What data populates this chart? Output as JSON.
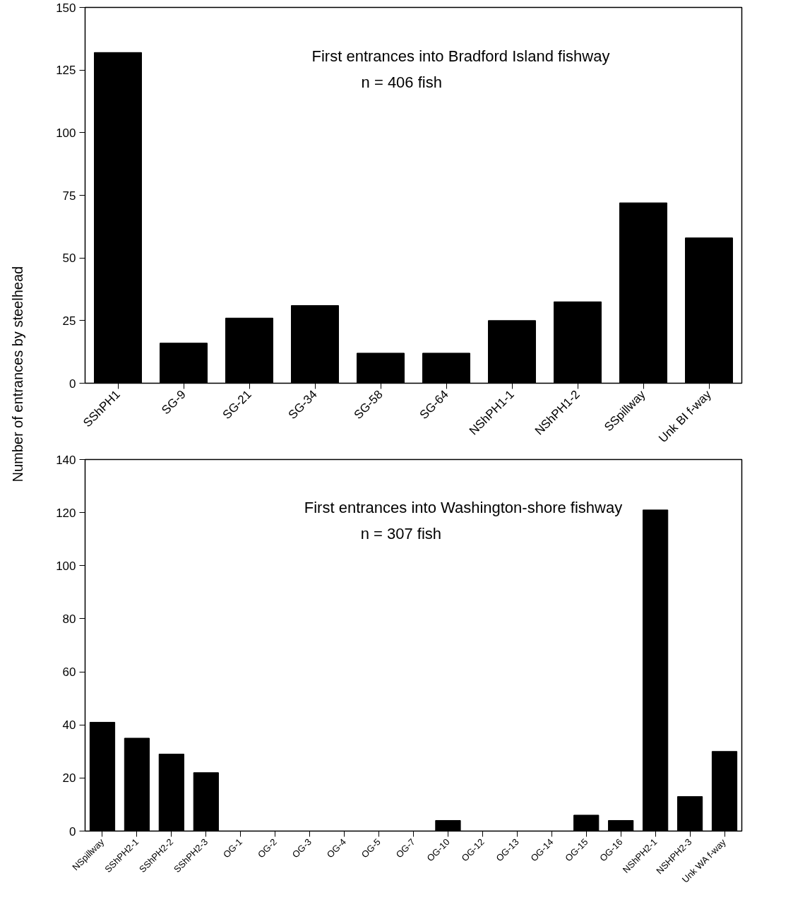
{
  "chart_data": [
    {
      "type": "bar",
      "title": "First entrances into Bradford Island fishway",
      "ylabel": "Number of entrances by steelhead",
      "annotations": [
        "n = 406 fish"
      ],
      "categories": [
        "SShPH1",
        "SG-9",
        "SG-21",
        "SG-34",
        "SG-58",
        "SG-64",
        "NShPH1-1",
        "NShPH1-2",
        "SSpillway",
        "Unk BI f-way"
      ],
      "values": [
        132,
        16,
        26,
        31,
        12,
        12,
        25,
        32.5,
        72,
        58
      ],
      "color": "#000000",
      "ylim": [
        0,
        150
      ],
      "yticks": [
        0,
        25,
        50,
        75,
        100,
        125,
        150
      ],
      "grid": false
    },
    {
      "type": "bar",
      "title": "First entrances into Washington-shore fishway",
      "annotations": [
        "n = 307 fish"
      ],
      "categories": [
        "NSpillway",
        "SShPH2-1",
        "SShPH2-2",
        "SShPH2-3",
        "OG-1",
        "OG-2",
        "OG-3",
        "OG-4",
        "OG-5",
        "OG-7",
        "OG-10",
        "OG-12",
        "OG-13",
        "OG-14",
        "OG-15",
        "OG-16",
        "NShPH2-1",
        "NSHPH2-3",
        "Unk WA f-way"
      ],
      "values": [
        41,
        35,
        29,
        22,
        0,
        0,
        0,
        0,
        0,
        0,
        4,
        0,
        0,
        0,
        6,
        4,
        121,
        13,
        30
      ],
      "color": "#000000",
      "ylim": [
        0,
        140
      ],
      "yticks": [
        0,
        20,
        40,
        60,
        80,
        100,
        120,
        140
      ],
      "grid": false
    }
  ]
}
